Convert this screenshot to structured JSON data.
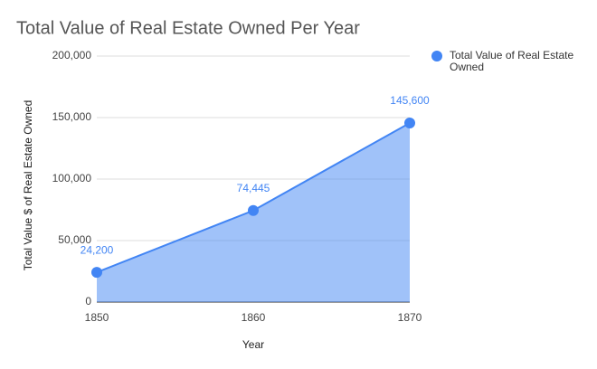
{
  "chart_data": {
    "type": "area",
    "title": "Total Value of Real Estate Owned Per Year",
    "x_label": "Year",
    "y_label": "Total Value $ of Real Estate Owned",
    "x": [
      1850,
      1860,
      1870
    ],
    "xlim": [
      1850,
      1870
    ],
    "xticks": [
      1850,
      1860,
      1870
    ],
    "ylim": [
      0,
      200000
    ],
    "yticks": [
      0,
      {
        "value": 50000,
        "label": "50,000"
      },
      {
        "value": 100000,
        "label": "100,000"
      },
      {
        "value": 150000,
        "label": "150,000"
      },
      {
        "value": 200000,
        "label": "200,000"
      }
    ],
    "grid": true,
    "legend": "right",
    "series": [
      {
        "name": "Total Value of Real Estate Owned",
        "color": "#4285f4",
        "values": [
          24200,
          74445,
          145600
        ],
        "value_labels": [
          "24,200",
          "74,445",
          "145,600"
        ]
      }
    ]
  }
}
